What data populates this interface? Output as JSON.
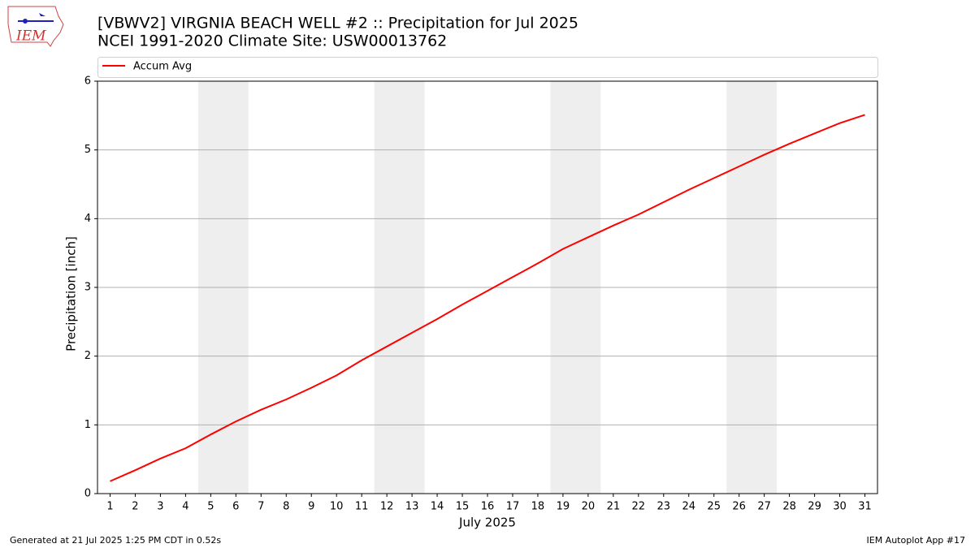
{
  "logo": "IEM",
  "footer_left": "Generated at 21 Jul 2025 1:25 PM CDT in 0.52s",
  "footer_right": "IEM Autoplot App #17",
  "chart_data": {
    "type": "line",
    "title": "[VBWV2] VIRGNIA BEACH WELL #2 :: Precipitation for Jul 2025",
    "subtitle": "NCEI 1991-2020 Climate Site: USW00013762",
    "x_label": "July 2025",
    "y_label": "Precipitation [inch]",
    "x": [
      1,
      2,
      3,
      4,
      5,
      6,
      7,
      8,
      9,
      10,
      11,
      12,
      13,
      14,
      15,
      16,
      17,
      18,
      19,
      20,
      21,
      22,
      23,
      24,
      25,
      26,
      27,
      28,
      29,
      30,
      31
    ],
    "series": [
      {
        "name": "Accum Avg",
        "color": "#ff0000",
        "values": [
          0.18,
          0.34,
          0.51,
          0.66,
          0.86,
          1.05,
          1.22,
          1.37,
          1.54,
          1.72,
          1.94,
          2.14,
          2.34,
          2.54,
          2.75,
          2.95,
          3.15,
          3.35,
          3.56,
          3.73,
          3.9,
          4.06,
          4.24,
          4.42,
          4.59,
          4.76,
          4.93,
          5.09,
          5.24,
          5.39,
          5.51
        ]
      }
    ],
    "shaded_spans": [
      [
        4.5,
        6.5
      ],
      [
        11.5,
        13.5
      ],
      [
        18.5,
        20.5
      ],
      [
        25.5,
        27.5
      ]
    ],
    "shade_color": "#eeeeee",
    "xlim": [
      0.5,
      31.5
    ],
    "xticks": [
      1,
      2,
      3,
      4,
      5,
      6,
      7,
      8,
      9,
      10,
      11,
      12,
      13,
      14,
      15,
      16,
      17,
      18,
      19,
      20,
      21,
      22,
      23,
      24,
      25,
      26,
      27,
      28,
      29,
      30,
      31
    ],
    "ylim": [
      0,
      6
    ],
    "yticks": [
      0,
      1,
      2,
      3,
      4,
      5,
      6
    ],
    "grid": "y",
    "legend": "top"
  }
}
